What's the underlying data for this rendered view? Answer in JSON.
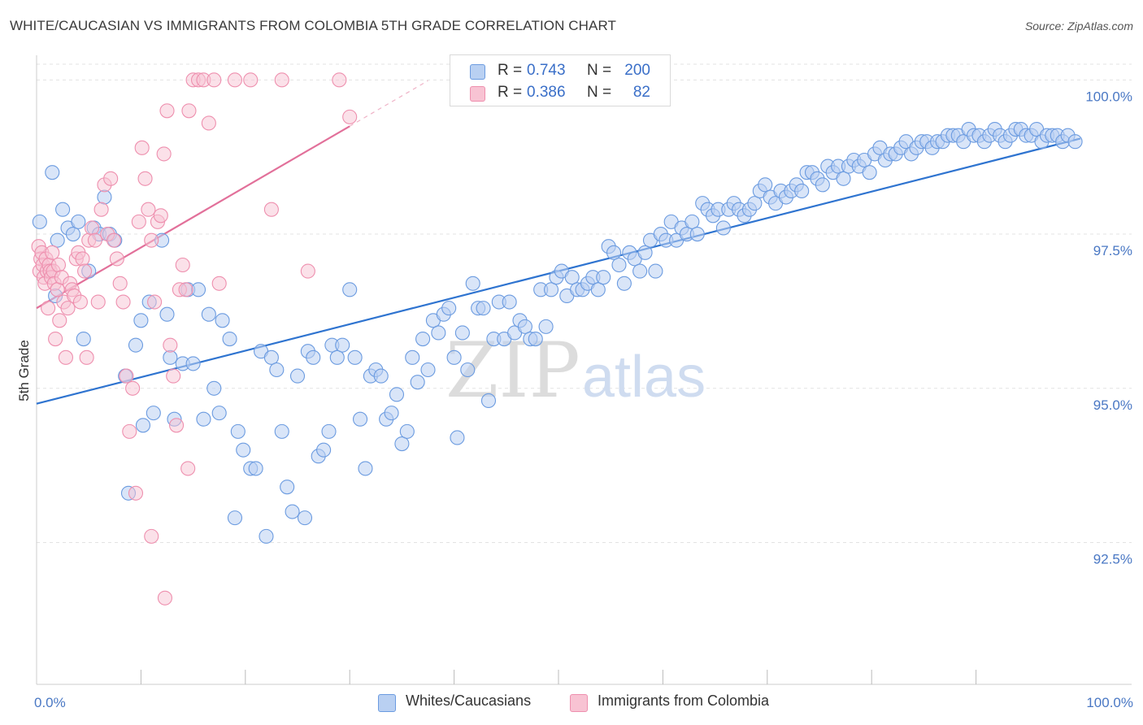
{
  "header": {
    "title": "WHITE/CAUCASIAN VS IMMIGRANTS FROM COLOMBIA 5TH GRADE CORRELATION CHART",
    "source": "Source: ZipAtlas.com"
  },
  "watermark": {
    "zip": "ZIP",
    "atlas": "atlas"
  },
  "legend_top": {
    "rows": [
      {
        "r_key": "R =",
        "r_value": "0.743",
        "n_key": "N =",
        "n_value": "200"
      },
      {
        "r_key": "R =",
        "r_value": "0.386",
        "n_key": "N =",
        "n_value": "82"
      }
    ]
  },
  "colors": {
    "blue_fill": "#b9d0f2",
    "blue_stroke": "#6b9be0",
    "blue_line": "#2f74d0",
    "pink_fill": "#f8c3d3",
    "pink_stroke": "#ee8fae",
    "pink_line": "#e2709a",
    "grid": "#e3e3e3",
    "tick_text": "#4a78c4"
  },
  "chart_data": {
    "type": "scatter",
    "title": "WHITE/CAUCASIAN VS IMMIGRANTS FROM COLOMBIA 5TH GRADE CORRELATION CHART",
    "xlabel": "",
    "ylabel": "5th Grade",
    "xlim": [
      0,
      100
    ],
    "ylim": [
      90.2,
      100.4
    ],
    "x_tick_labels": [
      "0.0%",
      "100.0%"
    ],
    "y_ticks": [
      {
        "value": 100.0,
        "label": "100.0%"
      },
      {
        "value": 97.5,
        "label": "97.5%"
      },
      {
        "value": 95.0,
        "label": "95.0%"
      },
      {
        "value": 92.5,
        "label": "92.5%"
      }
    ],
    "grid": "horizontal dashed",
    "legend_placement": "bottom-center",
    "series": [
      {
        "name": "Whites/Caucasians",
        "R": 0.743,
        "N": 200,
        "trend": {
          "x": [
            0,
            100
          ],
          "y": [
            94.75,
            99.05
          ]
        },
        "points": [
          [
            0.3,
            97.7
          ],
          [
            1.5,
            98.5
          ],
          [
            1.8,
            96.5
          ],
          [
            2,
            97.4
          ],
          [
            2.5,
            97.9
          ],
          [
            3,
            97.6
          ],
          [
            3.5,
            97.5
          ],
          [
            4,
            97.7
          ],
          [
            4.5,
            95.8
          ],
          [
            5,
            96.9
          ],
          [
            5.5,
            97.6
          ],
          [
            6,
            97.5
          ],
          [
            6.5,
            98.1
          ],
          [
            7,
            97.5
          ],
          [
            7.5,
            97.4
          ],
          [
            8.5,
            95.2
          ],
          [
            8.8,
            93.3
          ],
          [
            9.5,
            95.7
          ],
          [
            10,
            96.1
          ],
          [
            10.2,
            94.4
          ],
          [
            10.8,
            96.4
          ],
          [
            11.2,
            94.6
          ],
          [
            12,
            97.4
          ],
          [
            12.5,
            96.2
          ],
          [
            12.8,
            95.5
          ],
          [
            13.2,
            94.5
          ],
          [
            14,
            95.4
          ],
          [
            14.5,
            96.6
          ],
          [
            15,
            95.4
          ],
          [
            15.5,
            96.6
          ],
          [
            16,
            94.5
          ],
          [
            16.5,
            96.2
          ],
          [
            17,
            95.0
          ],
          [
            17.5,
            94.6
          ],
          [
            17.8,
            96.1
          ],
          [
            18.5,
            95.8
          ],
          [
            19,
            92.9
          ],
          [
            19.3,
            94.3
          ],
          [
            19.8,
            94.0
          ],
          [
            20.5,
            93.7
          ],
          [
            21,
            93.7
          ],
          [
            21.5,
            95.6
          ],
          [
            22,
            92.6
          ],
          [
            22.5,
            95.5
          ],
          [
            23,
            95.3
          ],
          [
            23.5,
            94.3
          ],
          [
            24,
            93.4
          ],
          [
            24.5,
            93.0
          ],
          [
            25,
            95.2
          ],
          [
            25.7,
            92.9
          ],
          [
            26,
            95.6
          ],
          [
            26.5,
            95.5
          ],
          [
            27,
            93.9
          ],
          [
            27.5,
            94.0
          ],
          [
            28,
            94.3
          ],
          [
            28.3,
            95.7
          ],
          [
            28.8,
            95.5
          ],
          [
            29.3,
            95.7
          ],
          [
            30,
            96.6
          ],
          [
            30.5,
            95.5
          ],
          [
            31,
            94.5
          ],
          [
            31.5,
            93.7
          ],
          [
            32,
            95.2
          ],
          [
            32.5,
            95.3
          ],
          [
            33,
            95.2
          ],
          [
            33.5,
            94.5
          ],
          [
            34,
            94.6
          ],
          [
            34.5,
            94.9
          ],
          [
            35,
            94.1
          ],
          [
            35.5,
            94.3
          ],
          [
            36,
            95.5
          ],
          [
            36.5,
            95.1
          ],
          [
            37,
            95.8
          ],
          [
            37.5,
            95.3
          ],
          [
            38,
            96.1
          ],
          [
            38.5,
            95.9
          ],
          [
            39,
            96.2
          ],
          [
            39.5,
            96.3
          ],
          [
            40,
            95.5
          ],
          [
            40.3,
            94.2
          ],
          [
            40.8,
            95.9
          ],
          [
            41.3,
            95.3
          ],
          [
            41.8,
            96.7
          ],
          [
            42.3,
            96.3
          ],
          [
            42.8,
            96.3
          ],
          [
            43.3,
            94.8
          ],
          [
            43.8,
            95.8
          ],
          [
            44.3,
            96.4
          ],
          [
            44.8,
            95.8
          ],
          [
            45.3,
            96.4
          ],
          [
            45.8,
            95.9
          ],
          [
            46.3,
            96.1
          ],
          [
            46.8,
            96.0
          ],
          [
            47.3,
            95.8
          ],
          [
            47.8,
            95.8
          ],
          [
            48.3,
            96.6
          ],
          [
            48.8,
            96.0
          ],
          [
            49.3,
            96.6
          ],
          [
            49.8,
            96.8
          ],
          [
            50.3,
            96.9
          ],
          [
            50.8,
            96.5
          ],
          [
            51.3,
            96.8
          ],
          [
            51.8,
            96.6
          ],
          [
            52.3,
            96.6
          ],
          [
            52.8,
            96.7
          ],
          [
            53.3,
            96.8
          ],
          [
            53.8,
            96.6
          ],
          [
            54.3,
            96.8
          ],
          [
            54.8,
            97.3
          ],
          [
            55.3,
            97.2
          ],
          [
            55.8,
            97.0
          ],
          [
            56.3,
            96.7
          ],
          [
            56.8,
            97.2
          ],
          [
            57.3,
            97.1
          ],
          [
            57.8,
            96.9
          ],
          [
            58.3,
            97.2
          ],
          [
            58.8,
            97.4
          ],
          [
            59.3,
            96.9
          ],
          [
            59.8,
            97.5
          ],
          [
            60.3,
            97.4
          ],
          [
            60.8,
            97.7
          ],
          [
            61.3,
            97.4
          ],
          [
            61.8,
            97.6
          ],
          [
            62.3,
            97.5
          ],
          [
            62.8,
            97.7
          ],
          [
            63.3,
            97.5
          ],
          [
            63.8,
            98.0
          ],
          [
            64.3,
            97.9
          ],
          [
            64.8,
            97.8
          ],
          [
            65.3,
            97.9
          ],
          [
            65.8,
            97.6
          ],
          [
            66.3,
            97.9
          ],
          [
            66.8,
            98.0
          ],
          [
            67.3,
            97.9
          ],
          [
            67.8,
            97.8
          ],
          [
            68.3,
            97.9
          ],
          [
            68.8,
            98.0
          ],
          [
            69.3,
            98.2
          ],
          [
            69.8,
            98.3
          ],
          [
            70.3,
            98.1
          ],
          [
            70.8,
            98.0
          ],
          [
            71.3,
            98.2
          ],
          [
            71.8,
            98.1
          ],
          [
            72.3,
            98.2
          ],
          [
            72.8,
            98.3
          ],
          [
            73.3,
            98.2
          ],
          [
            73.8,
            98.5
          ],
          [
            74.3,
            98.5
          ],
          [
            74.8,
            98.4
          ],
          [
            75.3,
            98.3
          ],
          [
            75.8,
            98.6
          ],
          [
            76.3,
            98.5
          ],
          [
            76.8,
            98.6
          ],
          [
            77.3,
            98.4
          ],
          [
            77.8,
            98.6
          ],
          [
            78.3,
            98.7
          ],
          [
            78.8,
            98.6
          ],
          [
            79.3,
            98.7
          ],
          [
            79.8,
            98.5
          ],
          [
            80.3,
            98.8
          ],
          [
            80.8,
            98.9
          ],
          [
            81.3,
            98.7
          ],
          [
            81.8,
            98.8
          ],
          [
            82.3,
            98.8
          ],
          [
            82.8,
            98.9
          ],
          [
            83.3,
            99.0
          ],
          [
            83.8,
            98.8
          ],
          [
            84.3,
            98.9
          ],
          [
            84.8,
            99.0
          ],
          [
            85.3,
            99.0
          ],
          [
            85.8,
            98.9
          ],
          [
            86.3,
            99.0
          ],
          [
            86.8,
            99.0
          ],
          [
            87.3,
            99.1
          ],
          [
            87.8,
            99.1
          ],
          [
            88.3,
            99.1
          ],
          [
            88.8,
            99.0
          ],
          [
            89.3,
            99.2
          ],
          [
            89.8,
            99.1
          ],
          [
            90.3,
            99.1
          ],
          [
            90.8,
            99.0
          ],
          [
            91.3,
            99.1
          ],
          [
            91.8,
            99.2
          ],
          [
            92.3,
            99.1
          ],
          [
            92.8,
            99.0
          ],
          [
            93.3,
            99.1
          ],
          [
            93.8,
            99.2
          ],
          [
            94.3,
            99.2
          ],
          [
            94.8,
            99.1
          ],
          [
            95.3,
            99.1
          ],
          [
            95.8,
            99.2
          ],
          [
            96.3,
            99.0
          ],
          [
            96.8,
            99.1
          ],
          [
            97.3,
            99.1
          ],
          [
            97.8,
            99.1
          ],
          [
            98.3,
            99.0
          ],
          [
            98.8,
            99.1
          ],
          [
            99.5,
            99.0
          ]
        ]
      },
      {
        "name": "Immigrants from Colombia",
        "R": 0.386,
        "N": 82,
        "trend": {
          "x": [
            0,
            30
          ],
          "y": [
            96.3,
            99.25
          ]
        },
        "points": [
          [
            0.2,
            97.3
          ],
          [
            0.3,
            96.9
          ],
          [
            0.4,
            97.1
          ],
          [
            0.5,
            97.2
          ],
          [
            0.6,
            97.0
          ],
          [
            0.7,
            96.8
          ],
          [
            0.8,
            96.7
          ],
          [
            0.9,
            97.1
          ],
          [
            1.0,
            96.9
          ],
          [
            1.1,
            96.3
          ],
          [
            1.2,
            97.0
          ],
          [
            1.3,
            96.9
          ],
          [
            1.4,
            96.8
          ],
          [
            1.5,
            97.2
          ],
          [
            1.6,
            96.9
          ],
          [
            1.7,
            96.7
          ],
          [
            1.8,
            95.8
          ],
          [
            2.0,
            96.6
          ],
          [
            2.1,
            97.0
          ],
          [
            2.2,
            96.1
          ],
          [
            2.4,
            96.8
          ],
          [
            2.6,
            96.4
          ],
          [
            2.8,
            95.5
          ],
          [
            3.0,
            96.3
          ],
          [
            3.2,
            96.7
          ],
          [
            3.4,
            96.6
          ],
          [
            3.6,
            96.5
          ],
          [
            3.8,
            97.1
          ],
          [
            4.0,
            97.2
          ],
          [
            4.2,
            96.4
          ],
          [
            4.4,
            97.1
          ],
          [
            4.6,
            96.9
          ],
          [
            4.8,
            95.5
          ],
          [
            5.0,
            97.4
          ],
          [
            5.3,
            97.6
          ],
          [
            5.6,
            97.4
          ],
          [
            5.9,
            96.4
          ],
          [
            6.2,
            97.9
          ],
          [
            6.5,
            98.3
          ],
          [
            6.8,
            97.5
          ],
          [
            7.1,
            98.4
          ],
          [
            7.4,
            97.4
          ],
          [
            7.7,
            97.1
          ],
          [
            8.0,
            96.7
          ],
          [
            8.3,
            96.4
          ],
          [
            8.6,
            95.2
          ],
          [
            8.9,
            94.3
          ],
          [
            9.2,
            95.0
          ],
          [
            9.5,
            93.3
          ],
          [
            9.8,
            97.7
          ],
          [
            10.1,
            98.9
          ],
          [
            10.4,
            98.4
          ],
          [
            10.7,
            97.9
          ],
          [
            11.0,
            97.4
          ],
          [
            11.3,
            96.4
          ],
          [
            11.6,
            97.7
          ],
          [
            11.9,
            97.8
          ],
          [
            12.2,
            98.8
          ],
          [
            12.5,
            99.5
          ],
          [
            12.8,
            95.7
          ],
          [
            13.1,
            95.2
          ],
          [
            13.4,
            94.4
          ],
          [
            13.7,
            96.6
          ],
          [
            14.0,
            97.0
          ],
          [
            14.3,
            96.6
          ],
          [
            14.6,
            99.5
          ],
          [
            15.0,
            100.0
          ],
          [
            15.5,
            100.0
          ],
          [
            16,
            100.0
          ],
          [
            16.5,
            99.3
          ],
          [
            17,
            100.0
          ],
          [
            19,
            100.0
          ],
          [
            20.5,
            100.0
          ],
          [
            23.5,
            100.0
          ],
          [
            29,
            100.0
          ],
          [
            30,
            99.4
          ],
          [
            22.5,
            97.9
          ],
          [
            26,
            96.9
          ],
          [
            17.5,
            96.7
          ],
          [
            11,
            92.6
          ],
          [
            12.3,
            91.6
          ],
          [
            14.5,
            93.7
          ]
        ]
      }
    ]
  }
}
